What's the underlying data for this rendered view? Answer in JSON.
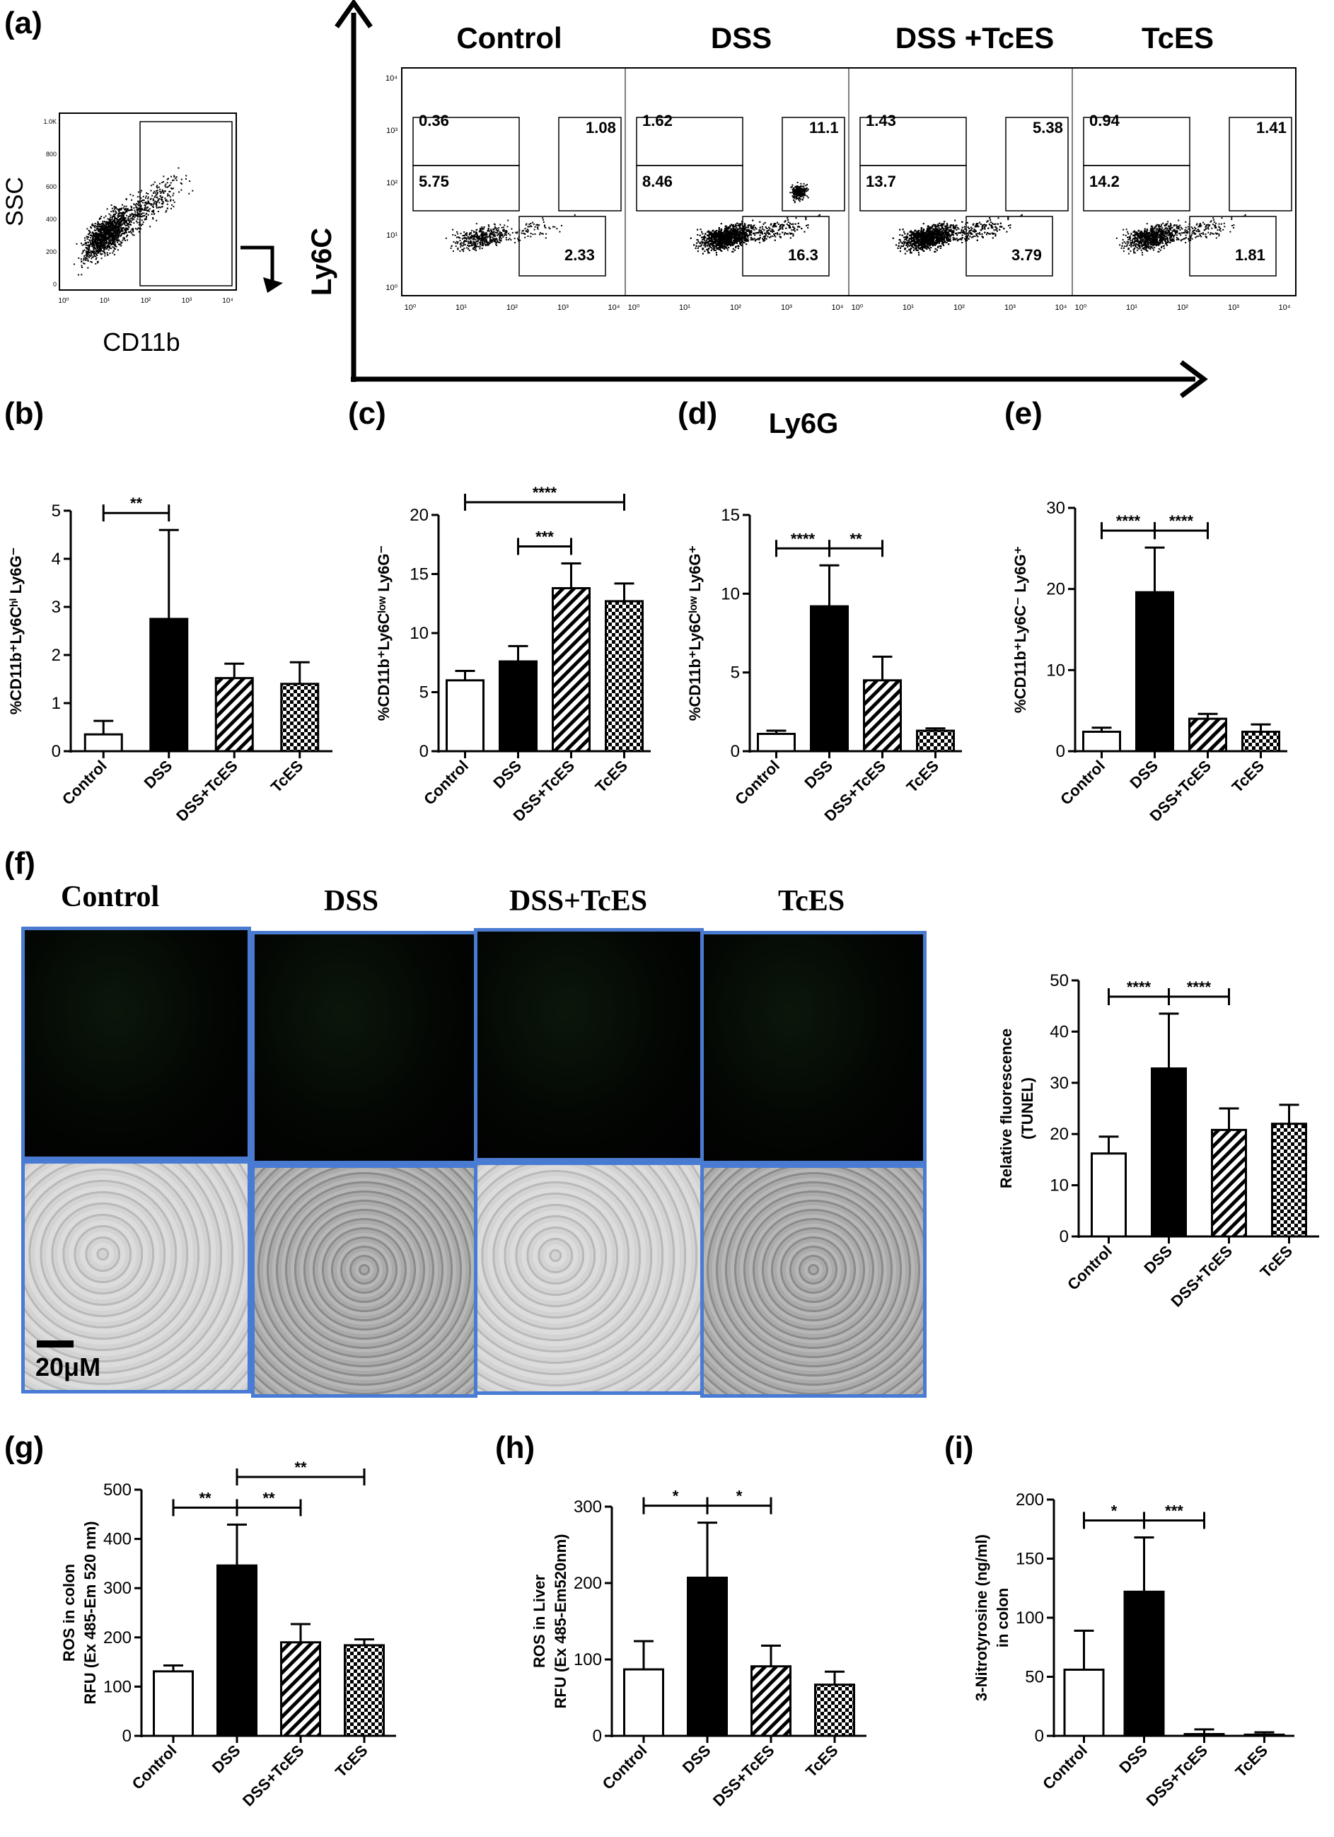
{
  "panel_letters": {
    "a": "(a)",
    "b": "(b)",
    "c": "(c)",
    "d": "(d)",
    "e": "(e)",
    "f": "(f)",
    "g": "(g)",
    "h": "(h)",
    "i": "(i)"
  },
  "flow": {
    "ssc_label": "SSC",
    "cd11b_label": "CD11b",
    "ly6c_label": "Ly6C",
    "ly6g_label": "Ly6G",
    "groups": [
      {
        "name": "Control",
        "ul": "0.36",
        "ml": "5.75",
        "ur": "1.08",
        "lr": "2.33"
      },
      {
        "name": "DSS",
        "ul": "1.62",
        "ml": "8.46",
        "ur": "11.1",
        "lr": "16.3"
      },
      {
        "name": "DSS +TcES",
        "ul": "1.43",
        "ml": "13.7",
        "ur": "5.38",
        "lr": "3.79"
      },
      {
        "name": "TcES",
        "ul": "0.94",
        "ml": "14.2",
        "ur": "1.41",
        "lr": "1.81"
      }
    ],
    "log_ticks": [
      "10⁰",
      "10¹",
      "10²",
      "10³",
      "10⁴"
    ],
    "ssc_ticks": [
      "0",
      "200",
      "400",
      "600",
      "800",
      "1.0K"
    ]
  },
  "microscopy": {
    "titles": [
      "Control",
      "DSS",
      "DSS+TcES",
      "TcES"
    ],
    "scale_bar": "20μM"
  },
  "chart_data": [
    {
      "id": "b",
      "type": "bar",
      "categories": [
        "Control",
        "DSS",
        "DSS+TcES",
        "TcES"
      ],
      "values": [
        0.35,
        2.75,
        1.52,
        1.4
      ],
      "errors": [
        0.28,
        1.85,
        0.3,
        0.45
      ],
      "ylabel": "%CD11b⁺Ly6Cʰⁱ Ly6G⁻",
      "ylim": [
        0,
        5
      ],
      "yticks": [
        "0",
        "1",
        "2",
        "3",
        "4",
        "5"
      ],
      "sig": [
        {
          "from": 0,
          "to": 1,
          "label": "**"
        }
      ]
    },
    {
      "id": "c",
      "type": "bar",
      "categories": [
        "Control",
        "DSS",
        "DSS+TcES",
        "TcES"
      ],
      "values": [
        6.0,
        7.6,
        13.8,
        12.7
      ],
      "errors": [
        0.8,
        1.3,
        2.1,
        1.5
      ],
      "ylabel": "%CD11b⁺Ly6Cˡᵒʷ Ly6G⁻",
      "ylim": [
        0,
        20
      ],
      "yticks": [
        "0",
        "5",
        "10",
        "15",
        "20"
      ],
      "sig": [
        {
          "from": 0,
          "to": 3,
          "label": "****"
        },
        {
          "from": 1,
          "to": 2,
          "label": "***"
        }
      ]
    },
    {
      "id": "d",
      "type": "bar",
      "categories": [
        "Control",
        "DSS",
        "DSS+TcES",
        "TcES"
      ],
      "values": [
        1.1,
        9.2,
        4.5,
        1.3
      ],
      "errors": [
        0.2,
        2.6,
        1.5,
        0.15
      ],
      "ylabel": "%CD11b⁺Ly6Cˡᵒʷ Ly6G⁺",
      "ylim": [
        0,
        15
      ],
      "yticks": [
        "0",
        "5",
        "10",
        "15"
      ],
      "sig": [
        {
          "from": 0,
          "to": 1,
          "label": "****"
        },
        {
          "from": 1,
          "to": 2,
          "label": "**"
        }
      ]
    },
    {
      "id": "e",
      "type": "bar",
      "categories": [
        "Control",
        "DSS",
        "DSS+TcES",
        "TcES"
      ],
      "values": [
        2.4,
        19.6,
        4.0,
        2.4
      ],
      "errors": [
        0.5,
        5.5,
        0.6,
        0.9
      ],
      "ylabel": "%CD11b⁺Ly6C⁻ Ly6G⁺",
      "ylim": [
        0,
        30
      ],
      "yticks": [
        "0",
        "10",
        "20",
        "30"
      ],
      "sig": [
        {
          "from": 0,
          "to": 1,
          "label": "****"
        },
        {
          "from": 1,
          "to": 2,
          "label": "****"
        }
      ]
    },
    {
      "id": "f",
      "type": "bar",
      "categories": [
        "Control",
        "DSS",
        "DSS+TcES",
        "TcES"
      ],
      "values": [
        16.2,
        32.8,
        20.8,
        22.0
      ],
      "errors": [
        3.3,
        10.7,
        4.2,
        3.7
      ],
      "ylabel": "Relative fluorescence",
      "ylabel2": "(TUNEL)",
      "ylim": [
        0,
        50
      ],
      "yticks": [
        "0",
        "10",
        "20",
        "30",
        "40",
        "50"
      ],
      "sig": [
        {
          "from": 0,
          "to": 1,
          "label": "****"
        },
        {
          "from": 1,
          "to": 2,
          "label": "****"
        }
      ]
    },
    {
      "id": "g",
      "type": "bar",
      "categories": [
        "Control",
        "DSS",
        "DSS+TcES",
        "TcES"
      ],
      "values": [
        131,
        346,
        190,
        184
      ],
      "errors": [
        12,
        83,
        37,
        12
      ],
      "ylabel": "ROS in colon",
      "ylabel2": "RFU (Ex 485-Em 520 nm)",
      "ylim": [
        0,
        500
      ],
      "yticks": [
        "0",
        "100",
        "200",
        "300",
        "400",
        "500"
      ],
      "sig": [
        {
          "from": 0,
          "to": 1,
          "label": "**"
        },
        {
          "from": 1,
          "to": 2,
          "label": "**"
        },
        {
          "from": 1,
          "to": 3,
          "label": "**"
        }
      ]
    },
    {
      "id": "h",
      "type": "bar",
      "categories": [
        "Control",
        "DSS",
        "DSS+TcES",
        "TcES"
      ],
      "values": [
        87,
        207,
        91,
        67
      ],
      "errors": [
        37,
        72,
        27,
        17
      ],
      "ylabel": "ROS in Liver",
      "ylabel2": "RFU (Ex 485-Em520nm)",
      "ylim": [
        0,
        300
      ],
      "yticks": [
        "0",
        "100",
        "200",
        "300"
      ],
      "sig": [
        {
          "from": 0,
          "to": 1,
          "label": "*"
        },
        {
          "from": 1,
          "to": 2,
          "label": "*"
        }
      ]
    },
    {
      "id": "i",
      "type": "bar",
      "categories": [
        "Control",
        "DSS",
        "DSS+TcES",
        "TcES"
      ],
      "values": [
        56,
        122,
        1.5,
        1
      ],
      "errors": [
        33,
        46,
        4,
        2
      ],
      "ylabel": "3-Nitrotyrosine (ng/ml)",
      "ylabel2": "in colon",
      "ylim": [
        0,
        200
      ],
      "yticks": [
        "0",
        "50",
        "100",
        "150",
        "200"
      ],
      "sig": [
        {
          "from": 0,
          "to": 1,
          "label": "*"
        },
        {
          "from": 1,
          "to": 2,
          "label": "***"
        }
      ]
    }
  ]
}
